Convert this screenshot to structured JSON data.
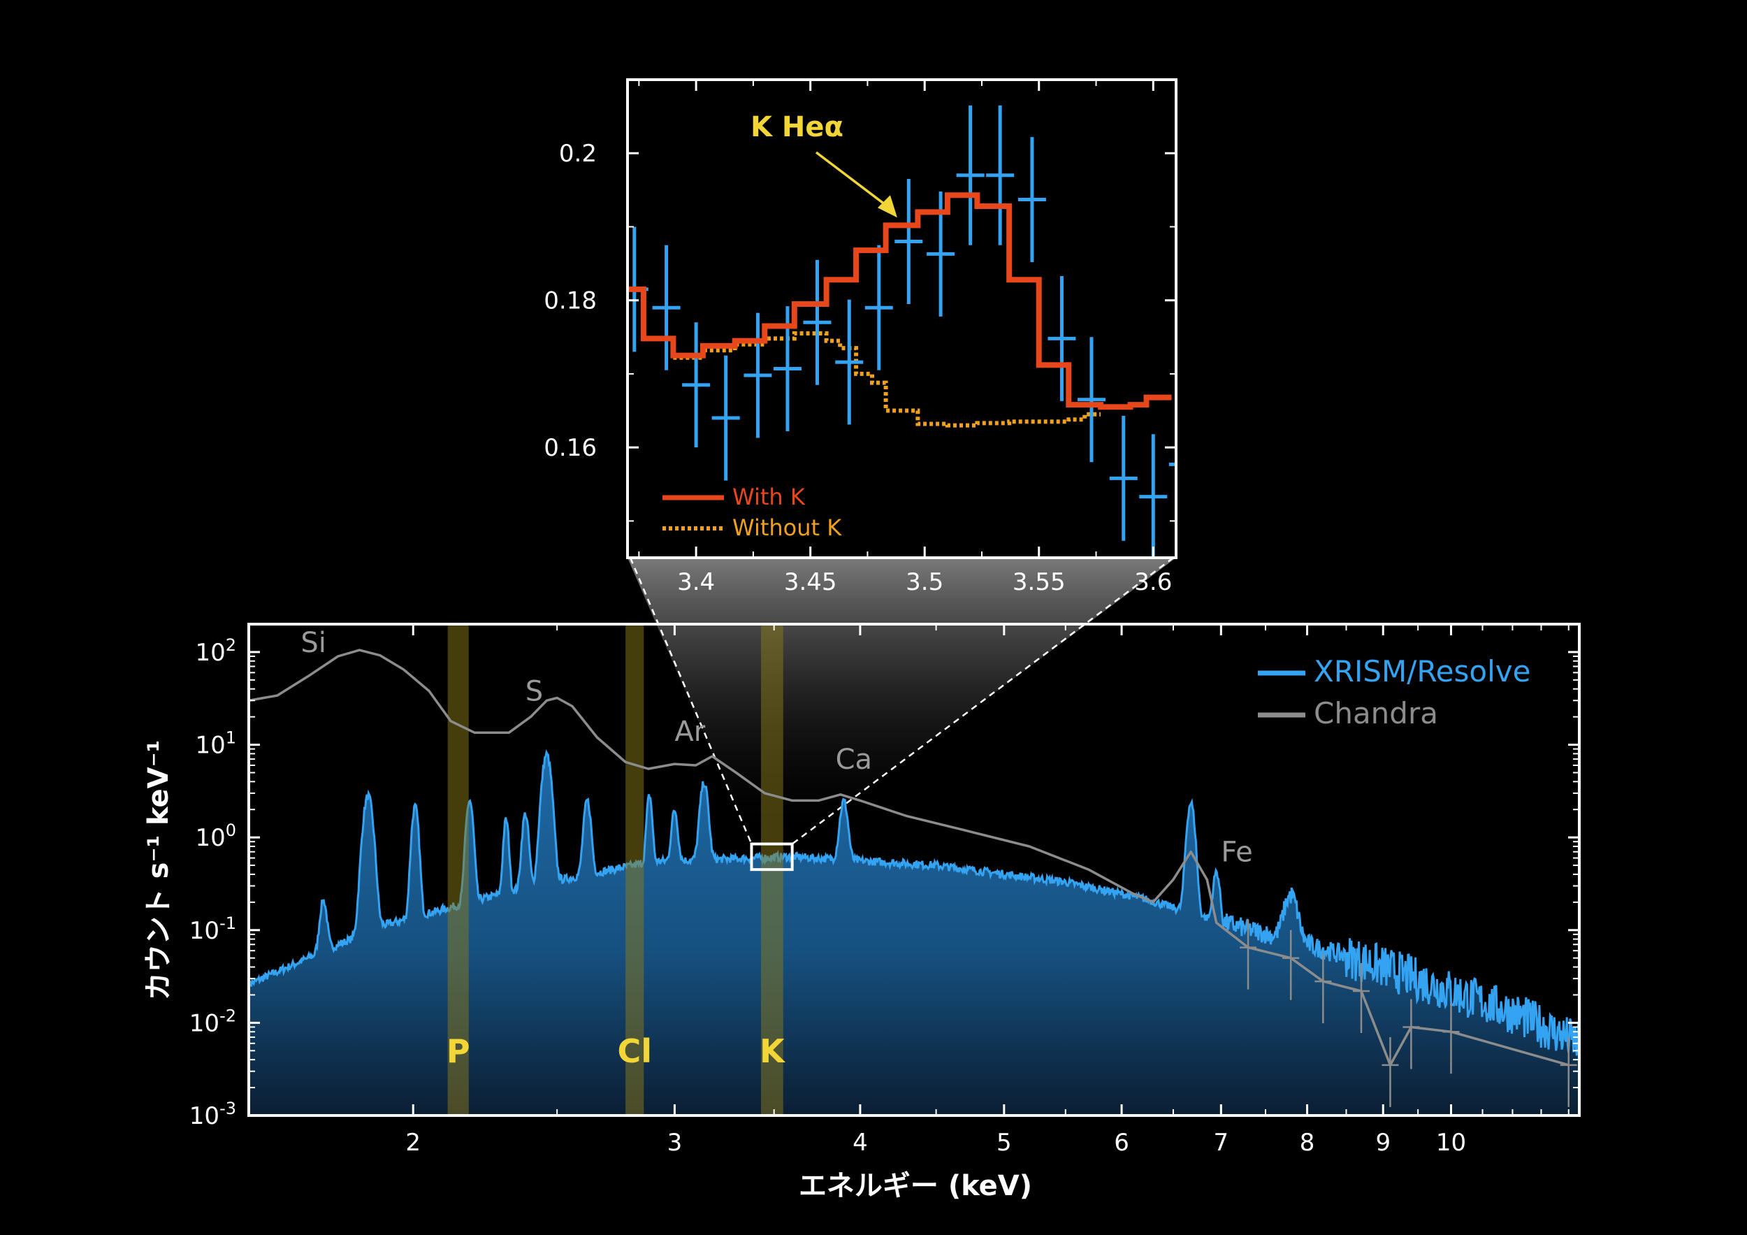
{
  "colors": {
    "background": "#000000",
    "xrism": "#33a3f2",
    "xrism_fill_top": "#1f6aa8",
    "xrism_fill_bottom": "#0b1e33",
    "chandra": "#8c8c8c",
    "band": "#8c7a1a",
    "band_label": "#f2d536",
    "with_k": "#e8471b",
    "without_k": "#f0a020",
    "frame": "#ffffff"
  },
  "chart_data": [
    {
      "id": "main",
      "type": "line",
      "xlabel": "エネルギー (keV)",
      "ylabel": "カウント s⁻¹ keV⁻¹",
      "xscale": "log",
      "yscale": "log",
      "xlim": [
        1.55,
        12.2
      ],
      "ylim": [
        0.001,
        200
      ],
      "xticks": [
        {
          "v": 2,
          "label": "2"
        },
        {
          "v": 3,
          "label": "3"
        },
        {
          "v": 4,
          "label": "4"
        },
        {
          "v": 5,
          "label": "5"
        },
        {
          "v": 6,
          "label": "6"
        },
        {
          "v": 7,
          "label": "7"
        },
        {
          "v": 8,
          "label": "8"
        },
        {
          "v": 9,
          "label": "9"
        },
        {
          "v": 10,
          "label": "10"
        }
      ],
      "yticks": [
        {
          "v": 100,
          "base": "10",
          "exp": "2"
        },
        {
          "v": 10,
          "base": "10",
          "exp": "1"
        },
        {
          "v": 1,
          "base": "10",
          "exp": "0"
        },
        {
          "v": 0.1,
          "base": "10",
          "exp": "-1"
        },
        {
          "v": 0.01,
          "base": "10",
          "exp": "-2"
        },
        {
          "v": 0.001,
          "base": "10",
          "exp": "-3"
        }
      ],
      "legend": {
        "position": "top-right",
        "entries": [
          {
            "name": "XRISM/Resolve",
            "color": "#33a3f2"
          },
          {
            "name": "Chandra",
            "color": "#8c8c8c"
          }
        ]
      },
      "series": [
        {
          "name": "XRISM/Resolve",
          "continuum": {
            "e0": 1.55,
            "c0": 0.026,
            "points": [
              [
                1.55,
                0.026
              ],
              [
                1.9,
                0.11
              ],
              [
                2.4,
                0.3
              ],
              [
                2.9,
                0.55
              ],
              [
                3.6,
                0.62
              ],
              [
                4.5,
                0.5
              ],
              [
                5.5,
                0.33
              ],
              [
                6.2,
                0.22
              ],
              [
                6.9,
                0.13
              ],
              [
                8,
                0.07
              ],
              [
                9,
                0.04
              ],
              [
                10,
                0.022
              ],
              [
                11,
                0.013
              ],
              [
                12.2,
                0.006
              ]
            ]
          },
          "lines": [
            {
              "e": 1.74,
              "peak": 0.15,
              "w": 0.008
            },
            {
              "e": 1.865,
              "peak": 2.7,
              "w": 0.012
            },
            {
              "e": 2.006,
              "peak": 2.0,
              "w": 0.009
            },
            {
              "e": 2.183,
              "peak": 2.3,
              "w": 0.01
            },
            {
              "e": 2.31,
              "peak": 1.3,
              "w": 0.008
            },
            {
              "e": 2.38,
              "peak": 1.5,
              "w": 0.01
            },
            {
              "e": 2.46,
              "peak": 7.5,
              "w": 0.015
            },
            {
              "e": 2.62,
              "peak": 2.1,
              "w": 0.012
            },
            {
              "e": 2.885,
              "peak": 2.3,
              "w": 0.01
            },
            {
              "e": 3.0,
              "peak": 1.4,
              "w": 0.012
            },
            {
              "e": 3.14,
              "peak": 3.3,
              "w": 0.016
            },
            {
              "e": 3.9,
              "peak": 1.9,
              "w": 0.02
            },
            {
              "e": 6.68,
              "peak": 2.2,
              "w": 0.035
            },
            {
              "e": 6.95,
              "peak": 0.3,
              "w": 0.03
            },
            {
              "e": 7.8,
              "peak": 0.16,
              "w": 0.07
            }
          ]
        },
        {
          "name": "Chandra",
          "points": [
            [
              1.55,
              30
            ],
            [
              1.62,
              34
            ],
            [
              1.7,
              55
            ],
            [
              1.78,
              90
            ],
            [
              1.84,
              105
            ],
            [
              1.9,
              92
            ],
            [
              1.97,
              65
            ],
            [
              2.05,
              38
            ],
            [
              2.12,
              18
            ],
            [
              2.2,
              13.5
            ],
            [
              2.32,
              13.5
            ],
            [
              2.4,
              20
            ],
            [
              2.46,
              30
            ],
            [
              2.5,
              32
            ],
            [
              2.56,
              26
            ],
            [
              2.66,
              12
            ],
            [
              2.78,
              6.5
            ],
            [
              2.88,
              5.5
            ],
            [
              3.0,
              6.2
            ],
            [
              3.1,
              6.0
            ],
            [
              3.18,
              7.5
            ],
            [
              3.3,
              5.0
            ],
            [
              3.45,
              3.0
            ],
            [
              3.6,
              2.5
            ],
            [
              3.75,
              2.5
            ],
            [
              3.88,
              2.9
            ],
            [
              4.0,
              2.5
            ],
            [
              4.3,
              1.7
            ],
            [
              4.7,
              1.2
            ],
            [
              5.2,
              0.8
            ],
            [
              5.7,
              0.45
            ],
            [
              6.1,
              0.25
            ],
            [
              6.3,
              0.2
            ],
            [
              6.5,
              0.35
            ],
            [
              6.68,
              0.7
            ],
            [
              6.85,
              0.35
            ],
            [
              6.95,
              0.12
            ],
            [
              7.3,
              0.065
            ],
            [
              7.8,
              0.05
            ],
            [
              8.2,
              0.028
            ],
            [
              8.7,
              0.022
            ],
            [
              9.1,
              0.0035
            ],
            [
              9.4,
              0.009
            ],
            [
              10,
              0.008
            ],
            [
              12,
              0.0035
            ]
          ]
        }
      ],
      "bands": [
        {
          "label": "P",
          "e_min": 2.11,
          "e_max": 2.18
        },
        {
          "label": "Cl",
          "e_min": 2.78,
          "e_max": 2.86
        },
        {
          "label": "K",
          "e_min": 3.43,
          "e_max": 3.55
        }
      ],
      "element_labels": [
        {
          "label": "Si",
          "x": 1.68,
          "y": 100
        },
        {
          "label": "S",
          "x": 2.38,
          "y": 30
        },
        {
          "label": "Ar",
          "x": 3.0,
          "y": 11
        },
        {
          "label": "Ca",
          "x": 3.85,
          "y": 5.5
        },
        {
          "label": "Fe",
          "x": 7.0,
          "y": 0.55
        }
      ],
      "zoom_box": {
        "x_min": 3.38,
        "x_max": 3.6,
        "y_min": 0.45,
        "y_max": 0.85
      }
    },
    {
      "id": "inset",
      "type": "line",
      "xlim": [
        3.37,
        3.61
      ],
      "ylim": [
        0.145,
        0.21
      ],
      "xticks": [
        "3.4",
        "3.45",
        "3.5",
        "3.55",
        "3.6"
      ],
      "yticks": [
        "0.16",
        "0.18",
        "0.2"
      ],
      "annotation": {
        "label": "K Heα",
        "x": 3.488,
        "y": 0.1905
      },
      "legend": {
        "position": "bottom-left",
        "entries": [
          {
            "name": "With K",
            "color": "#e8471b",
            "style": "solid"
          },
          {
            "name": "Without K",
            "color": "#f0a020",
            "style": "dotted"
          }
        ]
      },
      "data_points": [
        {
          "x": 3.373,
          "y": 0.1815,
          "err": 0.0085
        },
        {
          "x": 3.387,
          "y": 0.179,
          "err": 0.0085
        },
        {
          "x": 3.4,
          "y": 0.1685,
          "err": 0.0085
        },
        {
          "x": 3.413,
          "y": 0.164,
          "err": 0.0085
        },
        {
          "x": 3.427,
          "y": 0.1698,
          "err": 0.0085
        },
        {
          "x": 3.44,
          "y": 0.1707,
          "err": 0.0085
        },
        {
          "x": 3.453,
          "y": 0.177,
          "err": 0.0085
        },
        {
          "x": 3.467,
          "y": 0.1716,
          "err": 0.0085
        },
        {
          "x": 3.48,
          "y": 0.179,
          "err": 0.0085
        },
        {
          "x": 3.493,
          "y": 0.188,
          "err": 0.0085
        },
        {
          "x": 3.507,
          "y": 0.1863,
          "err": 0.0085
        },
        {
          "x": 3.52,
          "y": 0.197,
          "err": 0.0095
        },
        {
          "x": 3.533,
          "y": 0.197,
          "err": 0.0095
        },
        {
          "x": 3.547,
          "y": 0.1937,
          "err": 0.0085
        },
        {
          "x": 3.56,
          "y": 0.1748,
          "err": 0.0085
        },
        {
          "x": 3.573,
          "y": 0.1665,
          "err": 0.0085
        },
        {
          "x": 3.587,
          "y": 0.1558,
          "err": 0.0085
        },
        {
          "x": 3.6,
          "y": 0.1533,
          "err": 0.0085
        },
        {
          "x": 3.613,
          "y": 0.1577,
          "err": 0.0085
        }
      ],
      "with_k": [
        [
          3.37,
          0.1815
        ],
        [
          3.377,
          0.1815
        ],
        [
          3.377,
          0.1748
        ],
        [
          3.39,
          0.1748
        ],
        [
          3.39,
          0.1725
        ],
        [
          3.403,
          0.1725
        ],
        [
          3.403,
          0.1738
        ],
        [
          3.417,
          0.1738
        ],
        [
          3.417,
          0.1745
        ],
        [
          3.43,
          0.1745
        ],
        [
          3.43,
          0.1765
        ],
        [
          3.443,
          0.1765
        ],
        [
          3.443,
          0.1795
        ],
        [
          3.457,
          0.1795
        ],
        [
          3.457,
          0.1828
        ],
        [
          3.47,
          0.1828
        ],
        [
          3.47,
          0.1868
        ],
        [
          3.483,
          0.1868
        ],
        [
          3.483,
          0.1902
        ],
        [
          3.497,
          0.1902
        ],
        [
          3.497,
          0.192
        ],
        [
          3.51,
          0.192
        ],
        [
          3.51,
          0.1943
        ],
        [
          3.523,
          0.1943
        ],
        [
          3.523,
          0.1928
        ],
        [
          3.537,
          0.1928
        ],
        [
          3.537,
          0.1828
        ],
        [
          3.55,
          0.1828
        ],
        [
          3.55,
          0.1712
        ],
        [
          3.563,
          0.1712
        ],
        [
          3.563,
          0.1658
        ],
        [
          3.577,
          0.1658
        ],
        [
          3.577,
          0.1655
        ],
        [
          3.59,
          0.1655
        ],
        [
          3.59,
          0.1658
        ],
        [
          3.597,
          0.1658
        ],
        [
          3.597,
          0.1668
        ],
        [
          3.608,
          0.1668
        ]
      ],
      "without_k": [
        [
          3.39,
          0.1722
        ],
        [
          3.403,
          0.1722
        ],
        [
          3.403,
          0.1732
        ],
        [
          3.417,
          0.1732
        ],
        [
          3.417,
          0.174
        ],
        [
          3.43,
          0.174
        ],
        [
          3.43,
          0.1748
        ],
        [
          3.443,
          0.1748
        ],
        [
          3.443,
          0.1755
        ],
        [
          3.457,
          0.1755
        ],
        [
          3.457,
          0.1745
        ],
        [
          3.463,
          0.1745
        ],
        [
          3.463,
          0.1735
        ],
        [
          3.47,
          0.1735
        ],
        [
          3.47,
          0.17
        ],
        [
          3.477,
          0.17
        ],
        [
          3.477,
          0.1688
        ],
        [
          3.483,
          0.1688
        ],
        [
          3.483,
          0.165
        ],
        [
          3.497,
          0.165
        ],
        [
          3.497,
          0.1632
        ],
        [
          3.51,
          0.1632
        ],
        [
          3.51,
          0.163
        ],
        [
          3.523,
          0.163
        ],
        [
          3.523,
          0.1633
        ],
        [
          3.537,
          0.1633
        ],
        [
          3.537,
          0.1635
        ],
        [
          3.55,
          0.1635
        ],
        [
          3.55,
          0.1635
        ],
        [
          3.563,
          0.1635
        ],
        [
          3.563,
          0.1638
        ],
        [
          3.57,
          0.1638
        ],
        [
          3.57,
          0.1645
        ],
        [
          3.577,
          0.1645
        ]
      ]
    }
  ]
}
